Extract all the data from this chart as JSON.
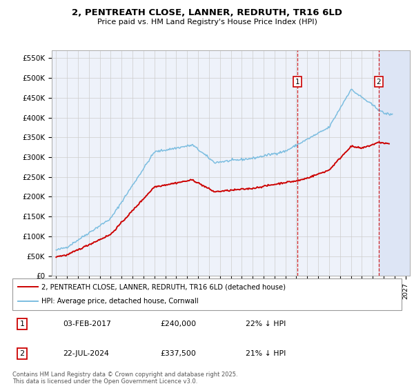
{
  "title1": "2, PENTREATH CLOSE, LANNER, REDRUTH, TR16 6LD",
  "title2": "Price paid vs. HM Land Registry's House Price Index (HPI)",
  "background_color": "#eef2fa",
  "hpi_color": "#7bbde0",
  "price_color": "#cc0000",
  "marker1_date": 2017.09,
  "marker1_price": 240000,
  "marker2_date": 2024.56,
  "marker2_price": 337500,
  "annotation1": [
    "1",
    "03-FEB-2017",
    "£240,000",
    "22% ↓ HPI"
  ],
  "annotation2": [
    "2",
    "22-JUL-2024",
    "£337,500",
    "21% ↓ HPI"
  ],
  "legend_label1": "2, PENTREATH CLOSE, LANNER, REDRUTH, TR16 6LD (detached house)",
  "legend_label2": "HPI: Average price, detached house, Cornwall",
  "footnote": "Contains HM Land Registry data © Crown copyright and database right 2025.\nThis data is licensed under the Open Government Licence v3.0.",
  "grid_color": "#cccccc",
  "yticks": [
    0,
    50000,
    100000,
    150000,
    200000,
    250000,
    300000,
    350000,
    400000,
    450000,
    500000,
    550000
  ],
  "ytick_labels": [
    "£0",
    "£50K",
    "£100K",
    "£150K",
    "£200K",
    "£250K",
    "£300K",
    "£350K",
    "£400K",
    "£450K",
    "£500K",
    "£550K"
  ]
}
